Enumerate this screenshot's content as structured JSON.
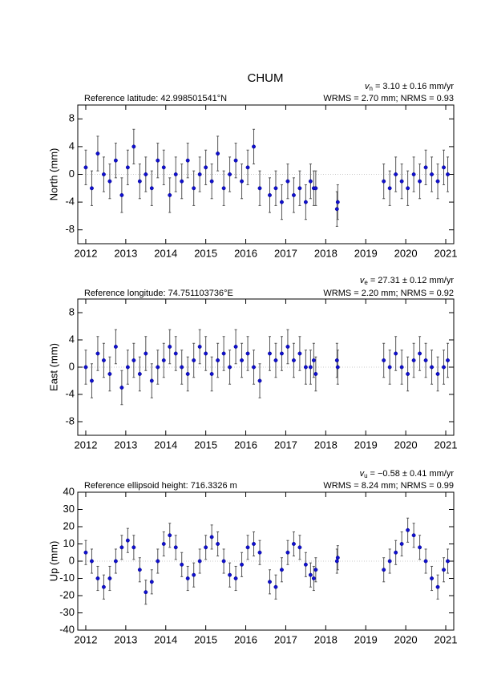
{
  "title": "CHUM",
  "chart_data": [
    {
      "type": "errorbar",
      "velocity_symbol": "v",
      "velocity_subscript": "n",
      "velocity": "= 3.10 ± 0.16 mm/yr",
      "reference": "Reference latitude: 42.998501541°N",
      "stats": "WRMS = 2.70 mm; NRMS = 0.93",
      "ylabel": "North (mm)",
      "xlim": [
        2011.8,
        2021.2
      ],
      "xticks": [
        2012,
        2013,
        2014,
        2015,
        2016,
        2017,
        2018,
        2019,
        2020,
        2021
      ],
      "ylim": [
        -10,
        10
      ],
      "yticks": [
        -8,
        -4,
        0,
        4,
        8
      ],
      "zero_line": true,
      "series": [
        {
          "color": "#1010d0",
          "error_color": "#555555",
          "x": [
            2012.0,
            2012.15,
            2012.3,
            2012.45,
            2012.6,
            2012.75,
            2012.9,
            2013.05,
            2013.2,
            2013.35,
            2013.5,
            2013.65,
            2013.8,
            2013.95,
            2014.1,
            2014.25,
            2014.4,
            2014.55,
            2014.7,
            2014.85,
            2015.0,
            2015.15,
            2015.3,
            2015.45,
            2015.6,
            2015.75,
            2015.9,
            2016.05,
            2016.2,
            2016.35,
            2016.6,
            2016.75,
            2016.9,
            2017.05,
            2017.2,
            2017.35,
            2017.5,
            2017.62,
            2017.7,
            2017.75,
            2018.28,
            2018.3,
            2019.45,
            2019.6,
            2019.75,
            2019.9,
            2020.05,
            2020.2,
            2020.35,
            2020.5,
            2020.65,
            2020.8,
            2020.95,
            2021.05
          ],
          "values": [
            1,
            -2,
            3,
            0,
            -1,
            2,
            -3,
            1,
            4,
            -1,
            0,
            -2,
            2,
            1,
            -3,
            0,
            -1,
            2,
            -2,
            0,
            1,
            -1,
            3,
            -2,
            0,
            2,
            -1,
            1,
            4,
            -2,
            -3,
            -2,
            -4,
            -1,
            -3,
            -2,
            -4,
            -1,
            -2,
            -2,
            -5,
            -4,
            -1,
            -2,
            0,
            -1,
            -2,
            0,
            -1,
            1,
            0,
            -1,
            1,
            0
          ],
          "errors": [
            2.5,
            2.5,
            2.5,
            2.5,
            2.5,
            2.5,
            2.5,
            2.5,
            2.5,
            2.5,
            2.5,
            2.5,
            2.5,
            2.5,
            2.5,
            2.5,
            2.5,
            2.5,
            2.5,
            2.5,
            2.5,
            2.5,
            2.5,
            2.5,
            2.5,
            2.5,
            2.5,
            2.5,
            2.5,
            2.5,
            2.5,
            2.5,
            2.5,
            2.5,
            2.5,
            2.5,
            2.5,
            2.5,
            2.5,
            2.5,
            2.5,
            2.5,
            2.5,
            2.5,
            2.5,
            2.5,
            2.5,
            2.5,
            2.5,
            2.5,
            2.5,
            2.5,
            2.5,
            2.5
          ]
        }
      ]
    },
    {
      "type": "errorbar",
      "velocity_symbol": "v",
      "velocity_subscript": "e",
      "velocity": "= 27.31 ± 0.12 mm/yr",
      "reference": "Reference longitude: 74.751103736°E",
      "stats": "WRMS = 2.20 mm; NRMS = 0.92",
      "ylabel": "East (mm)",
      "xlim": [
        2011.8,
        2021.2
      ],
      "xticks": [
        2012,
        2013,
        2014,
        2015,
        2016,
        2017,
        2018,
        2019,
        2020,
        2021
      ],
      "ylim": [
        -10,
        10
      ],
      "yticks": [
        -8,
        -4,
        0,
        4,
        8
      ],
      "zero_line": true,
      "series": [
        {
          "color": "#1010d0",
          "error_color": "#555555",
          "x": [
            2012.0,
            2012.15,
            2012.3,
            2012.45,
            2012.6,
            2012.75,
            2012.9,
            2013.05,
            2013.2,
            2013.35,
            2013.5,
            2013.65,
            2013.8,
            2013.95,
            2014.1,
            2014.25,
            2014.4,
            2014.55,
            2014.7,
            2014.85,
            2015.0,
            2015.15,
            2015.3,
            2015.45,
            2015.6,
            2015.75,
            2015.9,
            2016.05,
            2016.2,
            2016.35,
            2016.6,
            2016.75,
            2016.9,
            2017.05,
            2017.2,
            2017.35,
            2017.5,
            2017.62,
            2017.7,
            2017.75,
            2018.28,
            2018.3,
            2019.45,
            2019.6,
            2019.75,
            2019.9,
            2020.05,
            2020.2,
            2020.35,
            2020.5,
            2020.65,
            2020.8,
            2020.95,
            2021.05
          ],
          "values": [
            0,
            -2,
            2,
            1,
            -1,
            3,
            -3,
            0,
            1,
            -1,
            2,
            -2,
            0,
            1,
            3,
            2,
            0,
            -1,
            1,
            3,
            2,
            -1,
            1,
            2,
            0,
            3,
            1,
            2,
            0,
            -2,
            2,
            1,
            2,
            3,
            1,
            2,
            0,
            0,
            1,
            -1,
            1,
            0,
            1,
            0,
            2,
            0,
            -1,
            1,
            2,
            1,
            0,
            -1,
            0,
            1
          ],
          "errors": [
            2.5,
            2.5,
            2.5,
            2.5,
            2.5,
            2.5,
            2.5,
            2.5,
            2.5,
            2.5,
            2.5,
            2.5,
            2.5,
            2.5,
            2.5,
            2.5,
            2.5,
            2.5,
            2.5,
            2.5,
            2.5,
            2.5,
            2.5,
            2.5,
            2.5,
            2.5,
            2.5,
            2.5,
            2.5,
            2.5,
            2.5,
            2.5,
            2.5,
            2.5,
            2.5,
            2.5,
            2.5,
            2.5,
            2.5,
            2.5,
            2.5,
            2.5,
            2.5,
            2.5,
            2.5,
            2.5,
            2.5,
            2.5,
            2.5,
            2.5,
            2.5,
            2.5,
            2.5,
            2.5
          ]
        }
      ]
    },
    {
      "type": "errorbar",
      "velocity_symbol": "v",
      "velocity_subscript": "u",
      "velocity": "= −0.58 ± 0.41 mm/yr",
      "reference": "Reference ellipsoid height: 716.3326 m",
      "stats": "WRMS = 8.24 mm; NRMS = 0.99",
      "ylabel": "Up (mm)",
      "xlim": [
        2011.8,
        2021.2
      ],
      "xticks": [
        2012,
        2013,
        2014,
        2015,
        2016,
        2017,
        2018,
        2019,
        2020,
        2021
      ],
      "ylim": [
        -40,
        40
      ],
      "yticks": [
        -40,
        -30,
        -20,
        -10,
        0,
        10,
        20,
        30,
        40
      ],
      "zero_line": true,
      "series": [
        {
          "color": "#1010d0",
          "error_color": "#555555",
          "x": [
            2012.0,
            2012.15,
            2012.3,
            2012.45,
            2012.6,
            2012.75,
            2012.9,
            2013.05,
            2013.2,
            2013.35,
            2013.5,
            2013.65,
            2013.8,
            2013.95,
            2014.1,
            2014.25,
            2014.4,
            2014.55,
            2014.7,
            2014.85,
            2015.0,
            2015.15,
            2015.3,
            2015.45,
            2015.6,
            2015.75,
            2015.9,
            2016.05,
            2016.2,
            2016.35,
            2016.6,
            2016.75,
            2016.9,
            2017.05,
            2017.2,
            2017.35,
            2017.5,
            2017.62,
            2017.7,
            2017.75,
            2018.28,
            2018.3,
            2019.45,
            2019.6,
            2019.75,
            2019.9,
            2020.05,
            2020.2,
            2020.35,
            2020.5,
            2020.65,
            2020.8,
            2020.95,
            2021.05
          ],
          "values": [
            5,
            0,
            -10,
            -15,
            -10,
            0,
            8,
            12,
            8,
            -5,
            -18,
            -12,
            0,
            10,
            15,
            8,
            -2,
            -10,
            -8,
            0,
            8,
            14,
            10,
            0,
            -8,
            -10,
            -2,
            8,
            10,
            5,
            -12,
            -15,
            -5,
            5,
            10,
            8,
            -2,
            -8,
            -10,
            -5,
            0,
            2,
            -5,
            0,
            5,
            10,
            18,
            15,
            8,
            0,
            -10,
            -15,
            -5,
            0
          ],
          "errors": [
            7,
            7,
            7,
            7,
            7,
            7,
            7,
            7,
            7,
            7,
            7,
            7,
            7,
            7,
            7,
            7,
            7,
            7,
            7,
            7,
            7,
            7,
            7,
            7,
            7,
            7,
            7,
            7,
            7,
            7,
            7,
            7,
            7,
            7,
            7,
            7,
            7,
            7,
            7,
            7,
            7,
            7,
            7,
            7,
            7,
            7,
            7,
            7,
            7,
            7,
            7,
            7,
            7,
            7
          ]
        }
      ]
    }
  ]
}
